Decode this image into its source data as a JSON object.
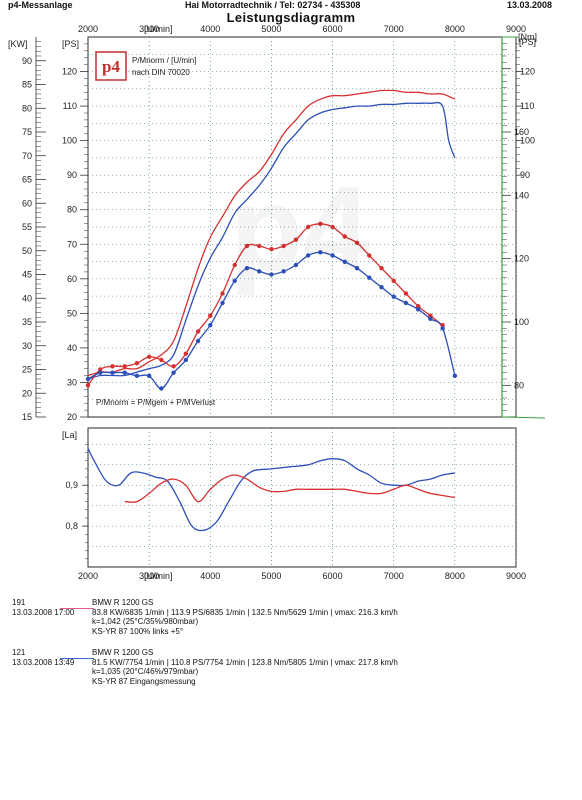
{
  "header": {
    "left": "p4-Messanlage",
    "center": "Hai Motorradtechnik  /  Tel: 02734 - 435308",
    "right": "13.03.2008"
  },
  "chart_data": [
    {
      "type": "line",
      "title": "Leistungsdiagramm",
      "x_label": "[U/min]",
      "x_range": [
        2000,
        9000
      ],
      "x_ticks": [
        "2000",
        "3000",
        "4000",
        "5000",
        "6000",
        "7000",
        "8000",
        "9000"
      ],
      "y_left_kw_label": "[KW]",
      "y_left_kw_range": [
        15,
        95
      ],
      "y_left_kw_ticks": [
        "15",
        "20",
        "25",
        "30",
        "35",
        "40",
        "45",
        "50",
        "55",
        "60",
        "65",
        "70",
        "75",
        "80",
        "85",
        "90"
      ],
      "y_ps_label": "[PS]",
      "y_ps_range": [
        20,
        130
      ],
      "y_ps_ticks": [
        "20",
        "30",
        "40",
        "50",
        "60",
        "70",
        "80",
        "90",
        "100",
        "110",
        "120"
      ],
      "y_right_ps_label": "[PS]",
      "y_right_ps_ticks": [
        "90",
        "100",
        "110",
        "120"
      ],
      "y_right_nm_label": "[Nm]",
      "y_right_nm_range": [
        70,
        190
      ],
      "y_right_nm_ticks": [
        "80",
        "100",
        "120",
        "140",
        "160"
      ],
      "annotations": [
        "P/Mnorm / [U/min]",
        "nach DIN 70020",
        "P/Mnorm = P/Mgem + P/MVerlust"
      ],
      "logo_text": "p4",
      "grid": true,
      "series": [
        {
          "name": "191 power",
          "color": "#d63030",
          "unit": "PS",
          "x": [
            2000,
            2200,
            2400,
            2600,
            2800,
            3000,
            3200,
            3400,
            3600,
            3800,
            4000,
            4200,
            4400,
            4600,
            4800,
            5000,
            5200,
            5400,
            5600,
            5800,
            6000,
            6200,
            6400,
            6600,
            6800,
            7000,
            7200,
            7400,
            7600,
            7800,
            8000
          ],
          "values": [
            32,
            33,
            33,
            34,
            34,
            36,
            38,
            42,
            52,
            63,
            72,
            78,
            84,
            88,
            91,
            96,
            102,
            106,
            110,
            112,
            113,
            113,
            113.5,
            114,
            114.5,
            114.5,
            114,
            114,
            113.5,
            113.5,
            112
          ]
        },
        {
          "name": "121 power",
          "color": "#2c4fb8",
          "unit": "PS",
          "x": [
            2000,
            2200,
            2400,
            2600,
            2800,
            3000,
            3200,
            3400,
            3600,
            3800,
            4000,
            4200,
            4400,
            4600,
            4800,
            5000,
            5200,
            5400,
            5600,
            5800,
            6000,
            6200,
            6400,
            6600,
            6800,
            7000,
            7200,
            7400,
            7600,
            7800,
            7900,
            8000
          ],
          "values": [
            31,
            32,
            32,
            32,
            33,
            34,
            35,
            38,
            48,
            58,
            66,
            72,
            79,
            83,
            87,
            92,
            98,
            102,
            106,
            108,
            109,
            109.5,
            110,
            110,
            110.5,
            110.5,
            110.8,
            110.8,
            110.8,
            110,
            100,
            95
          ]
        },
        {
          "name": "191 torque",
          "color": "#d63030",
          "unit": "Nm",
          "marker": "circle",
          "x": [
            2000,
            2200,
            2400,
            2600,
            2800,
            3000,
            3200,
            3400,
            3600,
            3800,
            4000,
            4200,
            4400,
            4600,
            4800,
            5000,
            5200,
            5400,
            5600,
            5800,
            6000,
            6200,
            6400,
            6600,
            6800,
            7000,
            7200,
            7400,
            7600,
            7800
          ],
          "values": [
            80,
            85,
            86,
            86,
            87,
            89,
            88,
            86,
            90,
            97,
            102,
            109,
            118,
            124,
            124,
            123,
            124,
            126,
            130,
            131,
            130,
            127,
            125,
            121,
            117,
            113,
            109,
            105,
            102,
            99
          ]
        },
        {
          "name": "121 torque",
          "color": "#2c4fb8",
          "unit": "Nm",
          "marker": "circle",
          "x": [
            2000,
            2200,
            2400,
            2600,
            2800,
            3000,
            3200,
            3400,
            3600,
            3800,
            4000,
            4200,
            4400,
            4600,
            4800,
            5000,
            5200,
            5400,
            5600,
            5800,
            6000,
            6200,
            6400,
            6600,
            6800,
            7000,
            7200,
            7400,
            7600,
            7800,
            8000
          ],
          "values": [
            82,
            84,
            84,
            84,
            83,
            83,
            79,
            84,
            88,
            94,
            99,
            106,
            113,
            117,
            116,
            115,
            116,
            118,
            121,
            122,
            121,
            119,
            117,
            114,
            111,
            108,
            106,
            104,
            101,
            98,
            83
          ]
        }
      ]
    },
    {
      "type": "line",
      "y_label": "[La]",
      "x_label": "[U/min]",
      "x_range": [
        2000,
        9000
      ],
      "x_ticks": [
        "2000",
        "3000",
        "4000",
        "5000",
        "6000",
        "7000",
        "8000",
        "9000"
      ],
      "y_range": [
        0.7,
        1.04
      ],
      "y_ticks": [
        "0,8",
        "0,9"
      ],
      "grid": true,
      "series": [
        {
          "name": "121 lambda",
          "color": "#2c4fb8",
          "x": [
            2000,
            2100,
            2300,
            2500,
            2700,
            2900,
            3100,
            3300,
            3500,
            3700,
            3900,
            4100,
            4300,
            4500,
            4700,
            5000,
            5300,
            5600,
            5800,
            6000,
            6200,
            6400,
            6600,
            6800,
            7000,
            7200,
            7400,
            7600,
            7800,
            8000
          ],
          "values": [
            0.99,
            0.96,
            0.91,
            0.9,
            0.93,
            0.93,
            0.92,
            0.91,
            0.86,
            0.8,
            0.79,
            0.81,
            0.86,
            0.91,
            0.935,
            0.94,
            0.945,
            0.95,
            0.96,
            0.965,
            0.96,
            0.94,
            0.925,
            0.905,
            0.9,
            0.9,
            0.91,
            0.915,
            0.925,
            0.93
          ]
        },
        {
          "name": "191 lambda",
          "color": "#d63030",
          "x": [
            2600,
            2800,
            3000,
            3200,
            3400,
            3600,
            3800,
            4000,
            4200,
            4400,
            4600,
            4800,
            5000,
            5200,
            5400,
            5600,
            5800,
            6000,
            6200,
            6400,
            6600,
            6800,
            7000,
            7200,
            7400,
            7600,
            7800,
            8000
          ],
          "values": [
            0.86,
            0.86,
            0.88,
            0.905,
            0.915,
            0.9,
            0.86,
            0.89,
            0.915,
            0.925,
            0.915,
            0.895,
            0.885,
            0.885,
            0.89,
            0.89,
            0.89,
            0.89,
            0.89,
            0.885,
            0.88,
            0.88,
            0.89,
            0.9,
            0.89,
            0.88,
            0.875,
            0.87
          ]
        }
      ]
    }
  ],
  "runs": [
    {
      "number": "191",
      "datetime": "13.03.2008  17:00",
      "model": "BMW R 1200 GS",
      "summary": "83.8 KW/6835 1/min  |  113.9 PS/6835 1/min  |  132.5 Nm/5629 1/min  |  vmax: 216.3 km/h",
      "correction": "k=1,042  (25°C/35%/980mbar)",
      "note": "KS-YR 87 100% links +5°"
    },
    {
      "number": "121",
      "datetime": "13.03.2008  13:49",
      "model": "BMW R 1200 GS",
      "summary": "81.5 KW/7754 1/min  |  110.8 PS/7754 1/min  |  123.8 Nm/5805 1/min  |  vmax: 217.8 km/h",
      "correction": "k=1,035  (20°C/46%/979mbar)",
      "note": "KS-YR 87 Eingangsmessung"
    }
  ]
}
